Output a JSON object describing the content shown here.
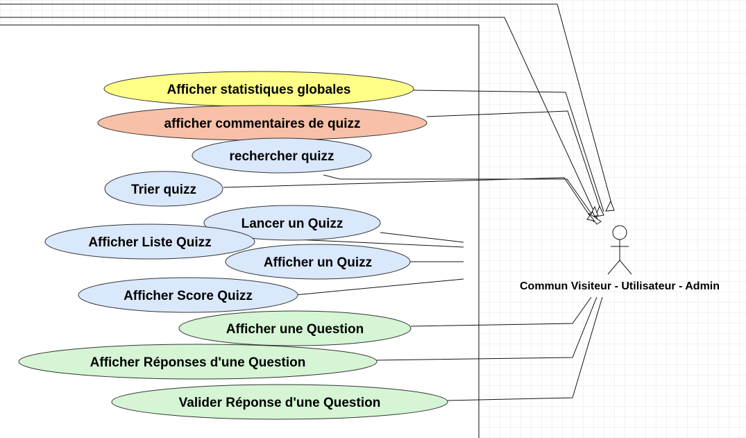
{
  "diagram": {
    "actor": {
      "label": "Commun Visiteur - Utilisateur - Admin",
      "icon": "stick-figure-icon"
    },
    "use_cases": [
      {
        "id": "stats",
        "label": "Afficher statistiques globales",
        "color": "#ffff88"
      },
      {
        "id": "comments",
        "label": "afficher commentaires de quizz",
        "color": "#f8c0a8"
      },
      {
        "id": "search",
        "label": "rechercher quizz",
        "color": "#dae8fc"
      },
      {
        "id": "sort",
        "label": "Trier quizz",
        "color": "#dae8fc"
      },
      {
        "id": "launch",
        "label": "Lancer un Quizz",
        "color": "#dae8fc"
      },
      {
        "id": "list",
        "label": "Afficher Liste Quizz",
        "color": "#dae8fc"
      },
      {
        "id": "show",
        "label": "Afficher un Quizz",
        "color": "#dae8fc"
      },
      {
        "id": "score",
        "label": "Afficher Score Quizz",
        "color": "#dae8fc"
      },
      {
        "id": "question",
        "label": "Afficher une Question",
        "color": "#d5f5d5"
      },
      {
        "id": "answers",
        "label": "Afficher Réponses d'une Question",
        "color": "#d5f5d5"
      },
      {
        "id": "validate",
        "label": "Valider Réponse d'une Question",
        "color": "#d5f5d5"
      }
    ],
    "colors": {
      "grid": "#d8d8d8",
      "system_boundary": "#333333",
      "stroke": "#333333"
    }
  }
}
